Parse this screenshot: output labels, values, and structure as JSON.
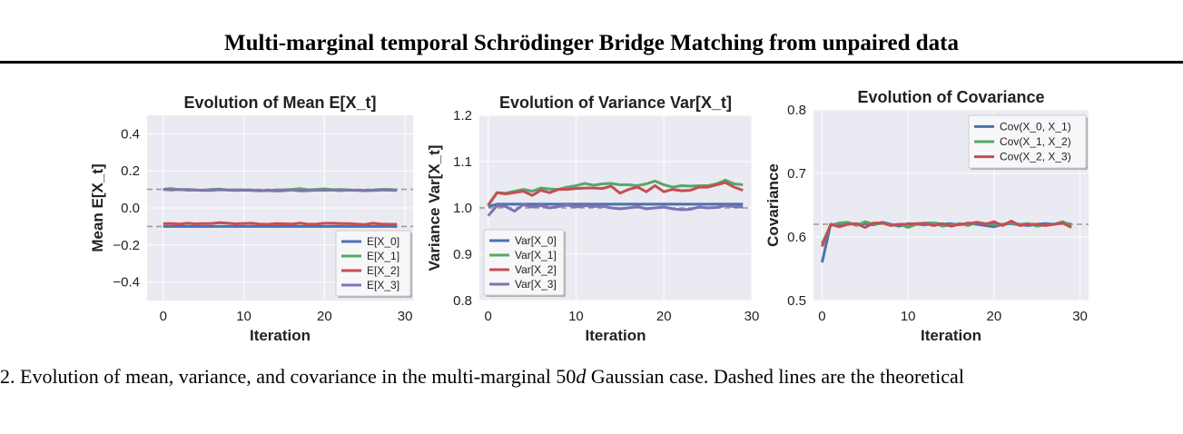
{
  "paper": {
    "title": "Multi-marginal temporal Schrödinger Bridge Matching from unpaired data",
    "caption_prefix": "2. Evolution of mean, variance, and covariance in the multi-marginal ",
    "caption_math_num": "50",
    "caption_math_var": "d",
    "caption_suffix": " Gaussian case. Dashed lines are the theoretical"
  },
  "chart_data": [
    {
      "type": "line",
      "title": "Evolution of Mean E[X_t]",
      "xlabel": "Iteration",
      "ylabel": "Mean E[X_t]",
      "xlim": [
        -2,
        31
      ],
      "ylim": [
        -0.5,
        0.5
      ],
      "xticks": [
        0,
        10,
        20,
        30
      ],
      "yticks": [
        0.4,
        0.2,
        0.0,
        -0.2,
        -0.4
      ],
      "yticklabels": [
        "0.4",
        "0.2",
        "0.0",
        "−0.2",
        "−0.4"
      ],
      "grid": true,
      "legend_position": "bottom-right",
      "reference_lines": [
        0.1,
        -0.1
      ],
      "x": [
        0,
        1,
        2,
        3,
        4,
        5,
        6,
        7,
        8,
        9,
        10,
        11,
        12,
        13,
        14,
        15,
        16,
        17,
        18,
        19,
        20,
        21,
        22,
        23,
        24,
        25,
        26,
        27,
        28,
        29
      ],
      "series": [
        {
          "name": "E[X_0]",
          "color": "#4c72b0",
          "values": [
            -0.1,
            -0.1,
            -0.1,
            -0.1,
            -0.1,
            -0.1,
            -0.1,
            -0.1,
            -0.1,
            -0.1,
            -0.1,
            -0.1,
            -0.1,
            -0.1,
            -0.1,
            -0.1,
            -0.1,
            -0.1,
            -0.1,
            -0.1,
            -0.1,
            -0.1,
            -0.1,
            -0.1,
            -0.1,
            -0.1,
            -0.1,
            -0.1,
            -0.1,
            -0.1
          ]
        },
        {
          "name": "E[X_1]",
          "color": "#55a868",
          "values": [
            0.1,
            0.105,
            0.098,
            0.1,
            0.097,
            0.095,
            0.1,
            0.102,
            0.096,
            0.098,
            0.097,
            0.096,
            0.095,
            0.093,
            0.097,
            0.098,
            0.1,
            0.104,
            0.098,
            0.1,
            0.103,
            0.098,
            0.1,
            0.097,
            0.096,
            0.095,
            0.097,
            0.1,
            0.1,
            0.097
          ]
        },
        {
          "name": "E[X_2]",
          "color": "#c44e52",
          "values": [
            -0.085,
            -0.085,
            -0.087,
            -0.083,
            -0.086,
            -0.085,
            -0.084,
            -0.08,
            -0.083,
            -0.086,
            -0.084,
            -0.083,
            -0.087,
            -0.088,
            -0.085,
            -0.086,
            -0.087,
            -0.082,
            -0.088,
            -0.087,
            -0.083,
            -0.083,
            -0.085,
            -0.085,
            -0.087,
            -0.09,
            -0.083,
            -0.087,
            -0.088,
            -0.088
          ]
        },
        {
          "name": "E[X_3]",
          "color": "#8172b2",
          "values": [
            0.1,
            0.097,
            0.1,
            0.096,
            0.097,
            0.094,
            0.095,
            0.098,
            0.097,
            0.094,
            0.096,
            0.094,
            0.092,
            0.095,
            0.091,
            0.093,
            0.097,
            0.092,
            0.093,
            0.096,
            0.095,
            0.097,
            0.093,
            0.096,
            0.095,
            0.093,
            0.094,
            0.096,
            0.096,
            0.094
          ]
        }
      ]
    },
    {
      "type": "line",
      "title": "Evolution of Variance Var[X_t]",
      "xlabel": "Iteration",
      "ylabel": "Variance Var[X_t]",
      "xlim": [
        -1,
        30
      ],
      "ylim": [
        0.8,
        1.2
      ],
      "xticks": [
        0,
        10,
        20,
        30
      ],
      "yticks": [
        1.2,
        1.1,
        1.0,
        0.9,
        0.8
      ],
      "yticklabels": [
        "1.2",
        "1.1",
        "1.0",
        "0.9",
        "0.8"
      ],
      "grid": true,
      "legend_position": "bottom-left",
      "reference_lines": [
        1.0
      ],
      "x": [
        0,
        1,
        2,
        3,
        4,
        5,
        6,
        7,
        8,
        9,
        10,
        11,
        12,
        13,
        14,
        15,
        16,
        17,
        18,
        19,
        20,
        21,
        22,
        23,
        24,
        25,
        26,
        27,
        28,
        29
      ],
      "series": [
        {
          "name": "Var[X_0]",
          "color": "#4c72b0",
          "values": [
            1.003,
            1.008,
            1.008,
            1.008,
            1.008,
            1.008,
            1.008,
            1.008,
            1.008,
            1.008,
            1.008,
            1.008,
            1.008,
            1.008,
            1.008,
            1.008,
            1.008,
            1.008,
            1.008,
            1.008,
            1.008,
            1.008,
            1.008,
            1.008,
            1.008,
            1.008,
            1.008,
            1.008,
            1.008,
            1.008
          ]
        },
        {
          "name": "Var[X_1]",
          "color": "#55a868",
          "values": [
            1.005,
            1.033,
            1.032,
            1.036,
            1.04,
            1.036,
            1.043,
            1.041,
            1.04,
            1.045,
            1.048,
            1.053,
            1.049,
            1.052,
            1.053,
            1.05,
            1.05,
            1.048,
            1.052,
            1.058,
            1.05,
            1.045,
            1.048,
            1.047,
            1.048,
            1.048,
            1.052,
            1.06,
            1.052,
            1.05
          ]
        },
        {
          "name": "Var[X_2]",
          "color": "#c44e52",
          "values": [
            1.006,
            1.033,
            1.03,
            1.033,
            1.036,
            1.027,
            1.038,
            1.033,
            1.04,
            1.04,
            1.042,
            1.043,
            1.043,
            1.042,
            1.047,
            1.032,
            1.04,
            1.045,
            1.035,
            1.048,
            1.035,
            1.04,
            1.037,
            1.038,
            1.045,
            1.045,
            1.05,
            1.055,
            1.045,
            1.038
          ]
        },
        {
          "name": "Var[X_3]",
          "color": "#8172b2",
          "values": [
            0.983,
            1.005,
            1.003,
            0.993,
            1.007,
            1.002,
            1.005,
            1.0,
            1.003,
            1.006,
            1.002,
            1.005,
            1.003,
            1.004,
            1.0,
            0.998,
            1.0,
            1.003,
            0.998,
            1.0,
            1.002,
            0.998,
            0.996,
            0.997,
            1.002,
            1.0,
            1.001,
            1.005,
            1.003,
            1.002
          ]
        }
      ]
    },
    {
      "type": "line",
      "title": "Evolution of Covariance",
      "xlabel": "Iteration",
      "ylabel": "Covariance",
      "xlim": [
        -1,
        31
      ],
      "ylim": [
        0.5,
        0.8
      ],
      "xticks": [
        0,
        10,
        20,
        30
      ],
      "yticks": [
        0.8,
        0.7,
        0.6,
        0.5
      ],
      "yticklabels": [
        "0.8",
        "0.7",
        "0.6",
        "0.5"
      ],
      "grid": true,
      "legend_position": "top-right",
      "reference_lines": [
        0.62
      ],
      "x": [
        0,
        1,
        2,
        3,
        4,
        5,
        6,
        7,
        8,
        9,
        10,
        11,
        12,
        13,
        14,
        15,
        16,
        17,
        18,
        19,
        20,
        21,
        22,
        23,
        24,
        25,
        26,
        27,
        28,
        29
      ],
      "series": [
        {
          "name": "Cov(X_0, X_1)",
          "color": "#4c72b0",
          "values": [
            0.56,
            0.62,
            0.618,
            0.622,
            0.62,
            0.621,
            0.619,
            0.623,
            0.62,
            0.617,
            0.621,
            0.62,
            0.619,
            0.622,
            0.62,
            0.621,
            0.619,
            0.622,
            0.62,
            0.618,
            0.616,
            0.62,
            0.621,
            0.619,
            0.618,
            0.62,
            0.621,
            0.62,
            0.622,
            0.62
          ]
        },
        {
          "name": "Cov(X_1, X_2)",
          "color": "#55a868",
          "values": [
            0.59,
            0.618,
            0.622,
            0.623,
            0.618,
            0.624,
            0.62,
            0.622,
            0.619,
            0.62,
            0.615,
            0.62,
            0.622,
            0.622,
            0.617,
            0.619,
            0.621,
            0.618,
            0.623,
            0.621,
            0.62,
            0.62,
            0.622,
            0.62,
            0.621,
            0.617,
            0.619,
            0.62,
            0.624,
            0.618
          ]
        },
        {
          "name": "Cov(X_2, X_3)",
          "color": "#c44e52",
          "values": [
            0.585,
            0.62,
            0.616,
            0.62,
            0.621,
            0.615,
            0.622,
            0.622,
            0.618,
            0.62,
            0.62,
            0.621,
            0.621,
            0.618,
            0.621,
            0.617,
            0.62,
            0.621,
            0.623,
            0.62,
            0.624,
            0.618,
            0.625,
            0.618,
            0.62,
            0.62,
            0.618,
            0.62,
            0.622,
            0.615
          ]
        }
      ]
    }
  ]
}
